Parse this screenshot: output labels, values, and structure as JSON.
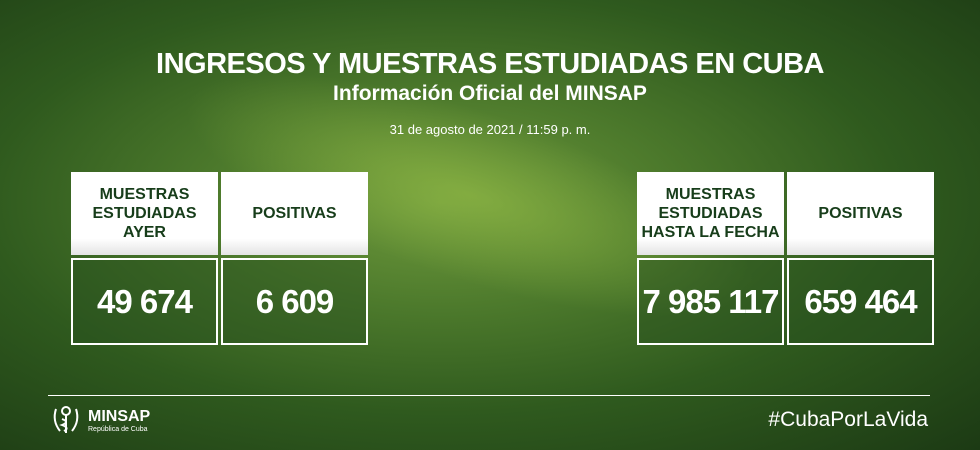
{
  "header": {
    "title": "INGRESOS Y MUESTRAS ESTUDIADAS EN CUBA",
    "subtitle": "Información Oficial del MINSAP",
    "date": "31 de agosto de 2021 / 11:59 p. m."
  },
  "left": [
    {
      "label": "MUESTRAS\nESTUDIADAS\nAYER",
      "value": "49 674"
    },
    {
      "label": "POSITIVAS",
      "value": "6 609"
    }
  ],
  "right": [
    {
      "label": "MUESTRAS\nESTUDIADAS\nHASTA LA FECHA",
      "value": "7 985 117"
    },
    {
      "label": "POSITIVAS",
      "value": "659 464"
    }
  ],
  "footer": {
    "logo_name": "MINSAP",
    "logo_sub": "República de Cuba",
    "hashtag": "#CubaPorLaVida"
  }
}
